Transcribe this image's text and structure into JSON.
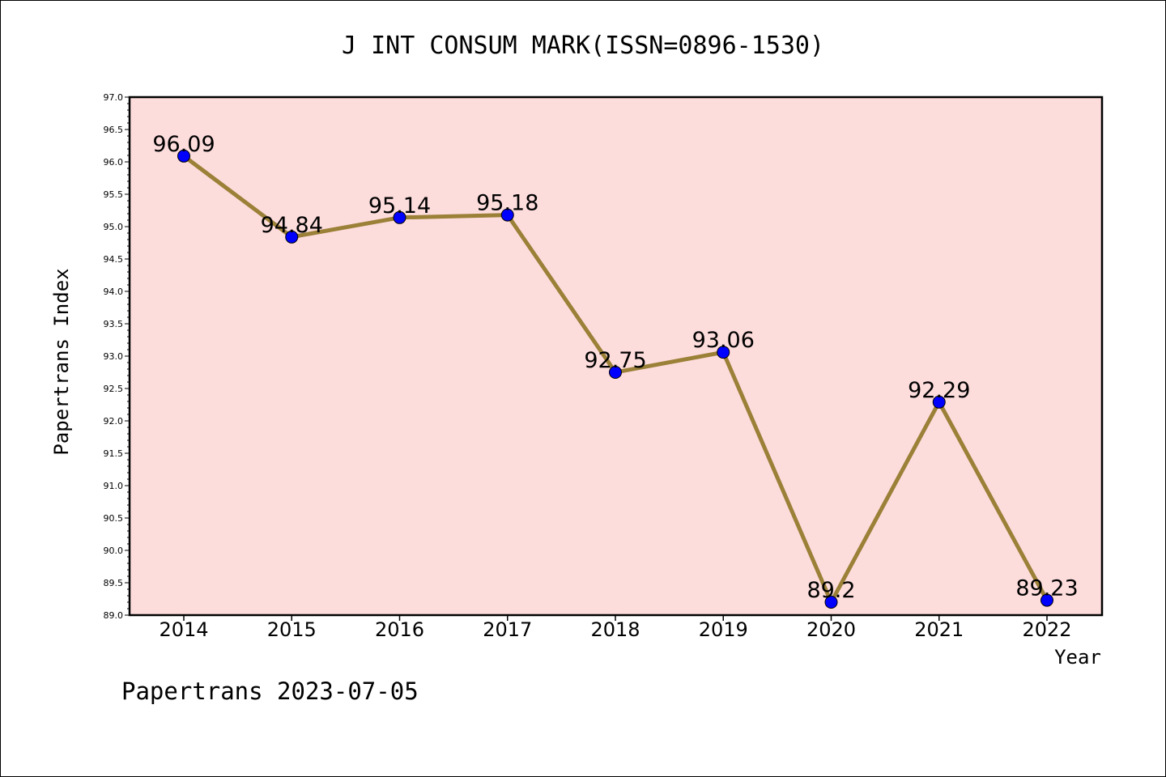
{
  "chart_data": {
    "type": "line",
    "title": "J INT CONSUM MARK(ISSN=0896-1530)",
    "xlabel": "Year",
    "ylabel": "Papertrans Index",
    "categories": [
      "2014",
      "2015",
      "2016",
      "2017",
      "2018",
      "2019",
      "2020",
      "2021",
      "2022"
    ],
    "values": [
      96.09,
      94.84,
      95.14,
      95.18,
      92.75,
      93.06,
      89.2,
      92.29,
      89.23
    ],
    "data_labels": [
      "96.09",
      "94.84",
      "95.14",
      "95.18",
      "92.75",
      "93.06",
      "89.2",
      "92.29",
      "89.23"
    ],
    "ylim": [
      89.0,
      97.0
    ],
    "y_ticks": [
      "89.0",
      "89.5",
      "90.0",
      "90.5",
      "91.0",
      "91.5",
      "92.0",
      "92.5",
      "93.0",
      "93.5",
      "94.0",
      "94.5",
      "95.0",
      "95.5",
      "96.0",
      "96.5",
      "97.0"
    ],
    "grid": false,
    "colors": {
      "plot_background": "#fddcdc",
      "line": "#9b8038",
      "marker": "#0000ff"
    },
    "footer": "Papertrans 2023-07-05"
  }
}
